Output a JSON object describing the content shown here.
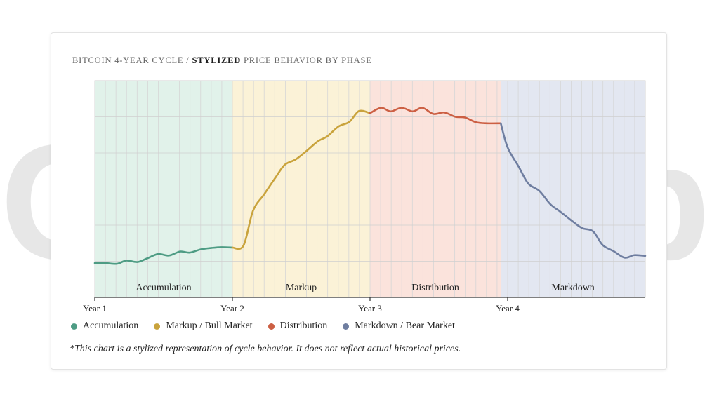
{
  "title_prefix": "BITCOIN 4-YEAR CYCLE / ",
  "title_bold": "STYLIZED",
  "title_suffix": " PRICE BEHAVIOR BY PHASE",
  "watermark": "Coincub",
  "footnote": "*This chart is a stylized representation of cycle behavior. It does not reflect actual historical prices.",
  "legend": [
    {
      "label": "Accumulation",
      "color": "#4e9c84"
    },
    {
      "label": "Markup / Bull Market",
      "color": "#c9a33c"
    },
    {
      "label": "Distribution",
      "color": "#cc5f43"
    },
    {
      "label": "Markdown / Bear Market",
      "color": "#6f7ea0"
    }
  ],
  "chart_data": {
    "type": "line",
    "title": "BITCOIN 4-YEAR CYCLE / STYLIZED PRICE BEHAVIOR BY PHASE",
    "xlabel": "",
    "ylabel": "",
    "grid": true,
    "legend_position": "bottom-left",
    "xlim": [
      0,
      4
    ],
    "ylim": [
      0,
      6
    ],
    "x_ticks": [
      {
        "value": 0,
        "label": "Year 1"
      },
      {
        "value": 1,
        "label": "Year 2"
      },
      {
        "value": 2,
        "label": "Year 3"
      },
      {
        "value": 3,
        "label": "Year 4"
      }
    ],
    "phases": [
      {
        "name": "Accumulation",
        "start": 0,
        "end": 1,
        "color": "#4e9c84",
        "fill": "#dff1e9"
      },
      {
        "name": "Markup",
        "start": 1,
        "end": 2,
        "color": "#c9a33c",
        "fill": "#fbf1d5"
      },
      {
        "name": "Distribution",
        "start": 2,
        "end": 2.95,
        "color": "#cc5f43",
        "fill": "#fbe2da"
      },
      {
        "name": "Markdown",
        "start": 2.95,
        "end": 4,
        "color": "#6f7ea0",
        "fill": "#e2e6f0"
      }
    ],
    "series": [
      {
        "name": "Accumulation",
        "color": "#4e9c84",
        "x": [
          0,
          0.08,
          0.16,
          0.23,
          0.31,
          0.38,
          0.46,
          0.54,
          0.62,
          0.69,
          0.77,
          0.85,
          0.92,
          1.0
        ],
        "y": [
          0.95,
          0.95,
          0.93,
          1.02,
          0.98,
          1.08,
          1.2,
          1.16,
          1.27,
          1.24,
          1.33,
          1.37,
          1.39,
          1.38
        ]
      },
      {
        "name": "Markup / Bull Market",
        "color": "#c9a33c",
        "x": [
          1.0,
          1.08,
          1.15,
          1.23,
          1.31,
          1.38,
          1.46,
          1.54,
          1.62,
          1.69,
          1.77,
          1.85,
          1.92,
          2.0
        ],
        "y": [
          1.38,
          1.43,
          2.4,
          2.85,
          3.3,
          3.67,
          3.82,
          4.06,
          4.32,
          4.46,
          4.73,
          4.86,
          5.16,
          5.1
        ],
        "x_start_extra": [
          1.0,
          1.08
        ]
      },
      {
        "name": "Distribution",
        "color": "#cc5f43",
        "x": [
          2.0,
          2.08,
          2.15,
          2.23,
          2.31,
          2.38,
          2.46,
          2.54,
          2.62,
          2.69,
          2.77,
          2.85,
          2.95
        ],
        "y": [
          5.1,
          5.25,
          5.15,
          5.25,
          5.15,
          5.25,
          5.08,
          5.12,
          5.0,
          4.98,
          4.85,
          4.82,
          4.82
        ]
      },
      {
        "name": "Markdown / Bear Market",
        "color": "#6f7ea0",
        "x": [
          2.95,
          3.0,
          3.08,
          3.15,
          3.23,
          3.31,
          3.38,
          3.46,
          3.54,
          3.62,
          3.69,
          3.77,
          3.85,
          3.92,
          4.0
        ],
        "y": [
          4.82,
          4.15,
          3.62,
          3.15,
          2.95,
          2.58,
          2.38,
          2.14,
          1.92,
          1.83,
          1.45,
          1.28,
          1.1,
          1.17,
          1.15
        ]
      }
    ]
  }
}
